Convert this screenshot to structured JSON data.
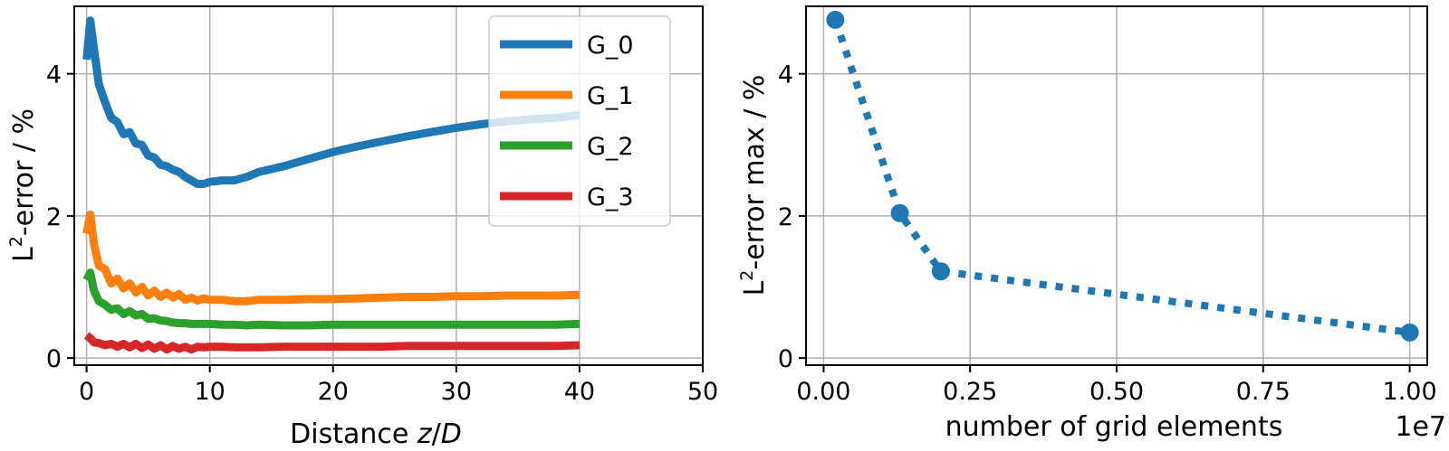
{
  "chart_data": [
    {
      "type": "line",
      "xlabel": "Distance z/D",
      "ylabel": "L²-error / %",
      "xlim": [
        -1,
        50
      ],
      "ylim": [
        -0.1,
        4.95
      ],
      "xticks": [
        "0",
        "10",
        "20",
        "30",
        "40",
        "50"
      ],
      "yticks": [
        "0",
        "2",
        "4"
      ],
      "grid": true,
      "legend": "top-right",
      "series": [
        {
          "name": "G_0",
          "color": "#1f77b4",
          "x": [
            0,
            0.3,
            0.6,
            1,
            1.5,
            2,
            2.5,
            3,
            3.5,
            4,
            4.5,
            5,
            5.5,
            6,
            6.5,
            7,
            7.5,
            8,
            8.5,
            9,
            9.5,
            10,
            11,
            12,
            13,
            14,
            16,
            18,
            20,
            22,
            24,
            26,
            28,
            30,
            32,
            34,
            36,
            38,
            40
          ],
          "values": [
            4.2,
            4.75,
            4.35,
            3.85,
            3.6,
            3.38,
            3.32,
            3.15,
            3.18,
            3.02,
            3.0,
            2.85,
            2.82,
            2.72,
            2.7,
            2.65,
            2.62,
            2.55,
            2.5,
            2.45,
            2.45,
            2.48,
            2.5,
            2.5,
            2.55,
            2.62,
            2.7,
            2.8,
            2.9,
            2.98,
            3.05,
            3.12,
            3.18,
            3.24,
            3.29,
            3.33,
            3.36,
            3.38,
            3.42
          ]
        },
        {
          "name": "G_1",
          "color": "#ff7f0e",
          "x": [
            0,
            0.3,
            0.6,
            1,
            1.5,
            2,
            2.5,
            3,
            3.5,
            4,
            4.5,
            5,
            5.5,
            6,
            6.5,
            7,
            7.5,
            8,
            8.5,
            9,
            9.5,
            10,
            11,
            12,
            13,
            14,
            16,
            18,
            20,
            22,
            24,
            26,
            28,
            30,
            32,
            34,
            36,
            38,
            40
          ],
          "values": [
            1.75,
            2.02,
            1.6,
            1.3,
            1.25,
            1.05,
            1.12,
            0.98,
            1.05,
            0.92,
            1.0,
            0.88,
            0.95,
            0.86,
            0.92,
            0.85,
            0.9,
            0.82,
            0.85,
            0.81,
            0.84,
            0.82,
            0.82,
            0.8,
            0.8,
            0.82,
            0.82,
            0.83,
            0.83,
            0.84,
            0.85,
            0.86,
            0.86,
            0.87,
            0.87,
            0.88,
            0.88,
            0.88,
            0.89
          ]
        },
        {
          "name": "G_2",
          "color": "#2ca02c",
          "x": [
            0,
            0.3,
            0.6,
            1,
            1.5,
            2,
            2.5,
            3,
            3.5,
            4,
            4.5,
            5,
            5.5,
            6,
            6.5,
            7,
            7.5,
            8,
            8.5,
            9,
            9.5,
            10,
            11,
            12,
            13,
            14,
            16,
            18,
            20,
            22,
            24,
            26,
            28,
            30,
            32,
            34,
            36,
            38,
            40
          ],
          "values": [
            1.1,
            1.2,
            0.95,
            0.8,
            0.75,
            0.68,
            0.7,
            0.62,
            0.66,
            0.6,
            0.62,
            0.55,
            0.56,
            0.53,
            0.52,
            0.5,
            0.49,
            0.49,
            0.48,
            0.48,
            0.48,
            0.48,
            0.47,
            0.47,
            0.46,
            0.47,
            0.46,
            0.46,
            0.47,
            0.47,
            0.47,
            0.47,
            0.47,
            0.47,
            0.47,
            0.47,
            0.47,
            0.47,
            0.48
          ]
        },
        {
          "name": "G_3",
          "color": "#d62728",
          "x": [
            0,
            0.3,
            0.6,
            1,
            1.5,
            2,
            2.5,
            3,
            3.5,
            4,
            4.5,
            5,
            5.5,
            6,
            6.5,
            7,
            7.5,
            8,
            8.5,
            9,
            9.5,
            10,
            11,
            12,
            13,
            14,
            16,
            18,
            20,
            22,
            24,
            26,
            28,
            30,
            32,
            34,
            36,
            38,
            40
          ],
          "values": [
            0.32,
            0.28,
            0.22,
            0.21,
            0.18,
            0.2,
            0.16,
            0.2,
            0.15,
            0.2,
            0.14,
            0.19,
            0.13,
            0.18,
            0.12,
            0.17,
            0.13,
            0.16,
            0.12,
            0.16,
            0.15,
            0.16,
            0.16,
            0.15,
            0.15,
            0.15,
            0.16,
            0.16,
            0.16,
            0.16,
            0.16,
            0.17,
            0.17,
            0.17,
            0.17,
            0.17,
            0.17,
            0.17,
            0.18
          ]
        }
      ]
    },
    {
      "type": "scatter",
      "xlabel": "number of grid elements",
      "ylabel": "L²-error max / %",
      "offset_text": "1e7",
      "xlim": [
        -0.03,
        1.03
      ],
      "ylim": [
        -0.1,
        4.95
      ],
      "xticks": [
        "0.00",
        "0.25",
        "0.50",
        "0.75",
        "1.00"
      ],
      "yticks": [
        "0",
        "2",
        "4"
      ],
      "grid": true,
      "series": [
        {
          "color": "#1f77b4",
          "line_style": "dotted",
          "x": [
            0.02,
            0.13,
            0.2,
            1.0
          ],
          "values": [
            4.76,
            2.04,
            1.22,
            0.36
          ]
        }
      ]
    }
  ]
}
